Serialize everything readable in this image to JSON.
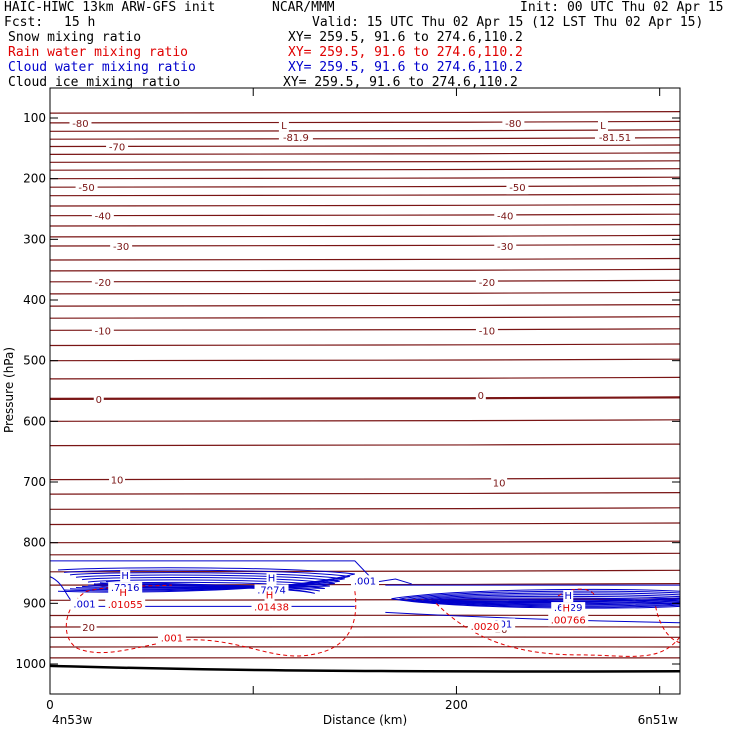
{
  "header": {
    "model": "HAIC-HIWC 13km ARW-GFS init",
    "center": "NCAR/MMM",
    "init": "Init: 00 UTC Thu 02 Apr 15",
    "fcst_label": "Fcst:",
    "fcst_value": "15 h",
    "valid": "Valid: 15 UTC Thu 02 Apr 15 (12 LST Thu 02 Apr 15)",
    "fields": [
      {
        "name": "Snow mixing ratio",
        "xy": "XY= 259.5, 91.6 to 274.6,110.2",
        "color": "#000000"
      },
      {
        "name": "Rain water mixing ratio",
        "xy": "XY= 259.5, 91.6 to 274.6,110.2",
        "color": "#e00000"
      },
      {
        "name": "Cloud water mixing ratio",
        "xy": "XY= 259.5, 91.6 to 274.6,110.2",
        "color": "#0000cc"
      },
      {
        "name": "Cloud ice mixing ratio",
        "xy": "XY= 259.5, 91.6 to 274.6,110.2",
        "color": "#000000"
      }
    ]
  },
  "chart_data": {
    "type": "cross-section contour",
    "xlabel": "Distance (km)",
    "ylabel": "Pressure (hPa)",
    "xlim": [
      0,
      310
    ],
    "ylim": [
      1050,
      50
    ],
    "x_ticks": [
      0,
      100,
      200,
      300
    ],
    "x_tick_labels": [
      "0",
      "",
      "200",
      ""
    ],
    "y_ticks": [
      100,
      200,
      300,
      400,
      500,
      600,
      700,
      800,
      900,
      1000
    ],
    "x_start_label": "4n53w",
    "x_end_label": "6n51w",
    "temperature_isotherm_color": "#7a1515",
    "temperature_labels": [
      {
        "text": "-80",
        "x": 15,
        "p": 108
      },
      {
        "text": "-80",
        "x": 228,
        "p": 108
      },
      {
        "text": "-70",
        "x": 33,
        "p": 147
      },
      {
        "text": "-50",
        "x": 18,
        "p": 214
      },
      {
        "text": "-50",
        "x": 230,
        "p": 214
      },
      {
        "text": "-40",
        "x": 26,
        "p": 261
      },
      {
        "text": "-40",
        "x": 224,
        "p": 261
      },
      {
        "text": "-30",
        "x": 35,
        "p": 311
      },
      {
        "text": "-30",
        "x": 224,
        "p": 311
      },
      {
        "text": "-20",
        "x": 26,
        "p": 370
      },
      {
        "text": "-20",
        "x": 215,
        "p": 370
      },
      {
        "text": "-10",
        "x": 26,
        "p": 450
      },
      {
        "text": "-10",
        "x": 215,
        "p": 450
      },
      {
        "text": "0",
        "x": 24,
        "p": 563
      },
      {
        "text": "0",
        "x": 212,
        "p": 557
      },
      {
        "text": "10",
        "x": 33,
        "p": 696
      },
      {
        "text": "10",
        "x": 221,
        "p": 701
      },
      {
        "text": "20",
        "x": 19,
        "p": 939
      },
      {
        "text": "20",
        "x": 222,
        "p": 942
      }
    ],
    "temperature_extrema": [
      {
        "type": "L",
        "value": "-81.9",
        "x": 121,
        "p": 75
      },
      {
        "type": "L",
        "value": "-81.51",
        "x": 278,
        "p": 75
      }
    ],
    "cloud_water_extrema": [
      {
        "type": "H",
        "value": ".7216",
        "x": 37,
        "p": 860
      },
      {
        "type": "H",
        "value": ".7974",
        "x": 109,
        "p": 864
      },
      {
        "type": "H",
        "value": ".6729",
        "x": 255,
        "p": 893
      }
    ],
    "rain_water_extrema": [
      {
        "type": "H",
        "value": ".01055",
        "x": 37,
        "p": 893
      },
      {
        "type": "H",
        "value": ".01438",
        "x": 109,
        "p": 897
      },
      {
        "type": "H",
        "value": ".00766",
        "x": 255,
        "p": 918
      }
    ],
    "contour_labels": [
      {
        "text": ".001",
        "x": 155,
        "p": 862,
        "color": "#0000cc"
      },
      {
        "text": ".001",
        "x": 17,
        "p": 900,
        "color": "#0000cc"
      },
      {
        "text": ".001",
        "x": 222,
        "p": 933,
        "color": "#0000cc"
      },
      {
        "text": ".001",
        "x": 60,
        "p": 956,
        "color": "#e00000"
      },
      {
        "text": ".0020",
        "x": 214,
        "p": 937,
        "color": "#e00000"
      }
    ]
  }
}
